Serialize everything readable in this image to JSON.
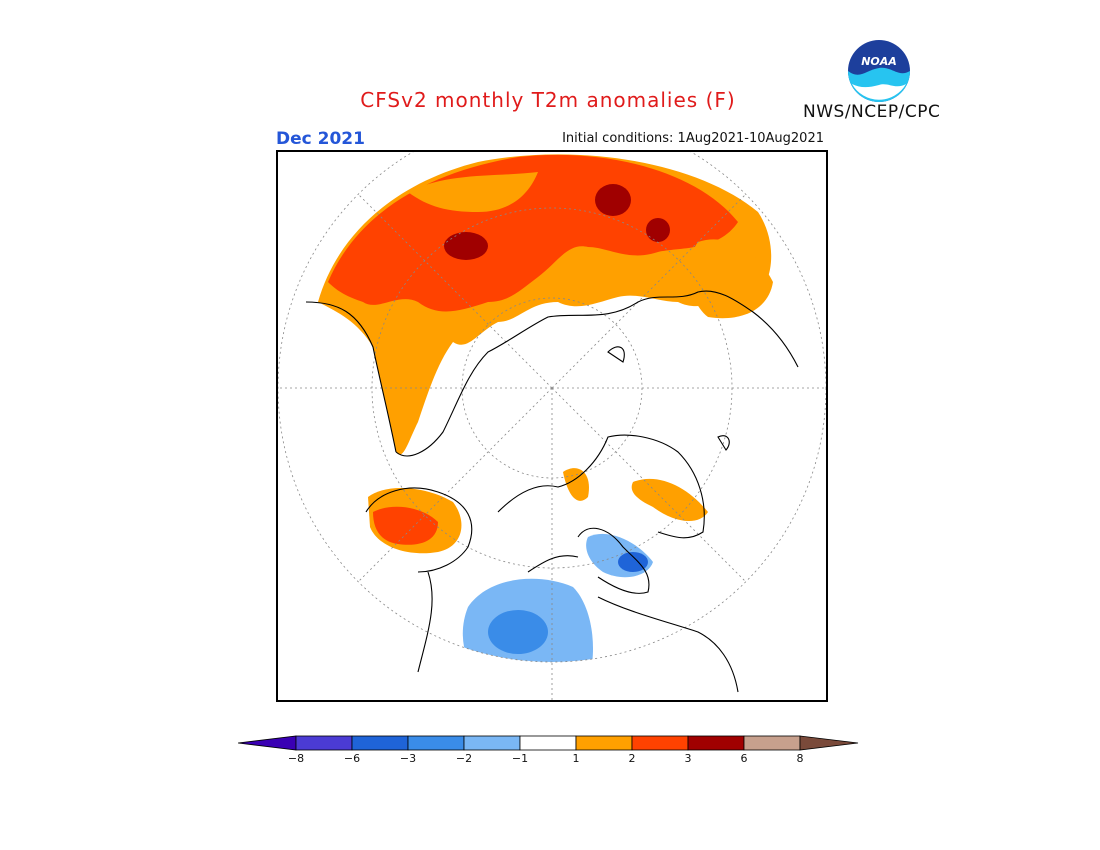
{
  "header": {
    "title": "CFSv2 monthly T2m anomalies (F)",
    "month": "Dec 2021",
    "initial_conditions": "Initial conditions: 1Aug2021-10Aug2021",
    "organization": "NWS/NCEP/CPC",
    "logo_text": "NOAA"
  },
  "colorbar": {
    "colors": [
      "#3a00b4",
      "#4b3bd4",
      "#1f64d8",
      "#3a8ce8",
      "#7ab7f5",
      "#ffffff",
      "#ffa000",
      "#ff4200",
      "#a00000",
      "#c7a08d",
      "#7a4a3a"
    ],
    "labels": [
      "-8",
      "-6",
      "-3",
      "-2",
      "-1",
      "1",
      "2",
      "3",
      "6",
      "8"
    ]
  },
  "map": {
    "projection": "north-polar-stereographic",
    "colors": {
      "warm_moderate": "#ffa000",
      "warm_strong": "#ff4200",
      "warm_extreme": "#a00000",
      "cool_light": "#7ab7f5",
      "cool_moderate": "#3a8ce8",
      "cool_strong": "#1f64d8"
    }
  }
}
